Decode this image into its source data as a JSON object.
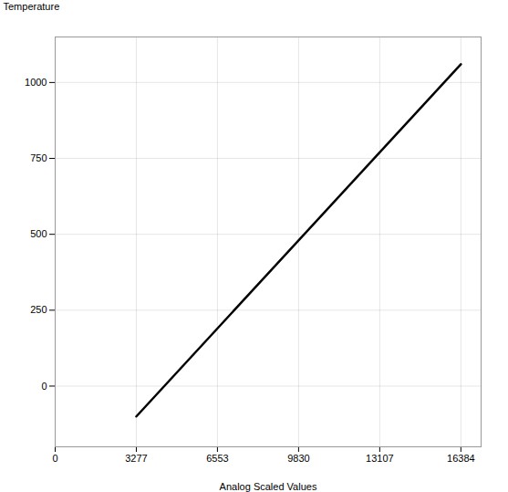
{
  "chart_data": {
    "type": "line",
    "xlabel": "Analog Scaled Values",
    "ylabel": "Temperature",
    "x": [
      3277,
      16384
    ],
    "values": [
      -100,
      1060
    ],
    "color": "#000000",
    "xlim": [
      0,
      17200
    ],
    "ylim": [
      -200,
      1150
    ],
    "xticks": [
      0,
      3277,
      6553,
      9830,
      13107,
      16384
    ],
    "yticks": [
      0,
      250,
      500,
      750,
      1000
    ],
    "grid": true
  }
}
